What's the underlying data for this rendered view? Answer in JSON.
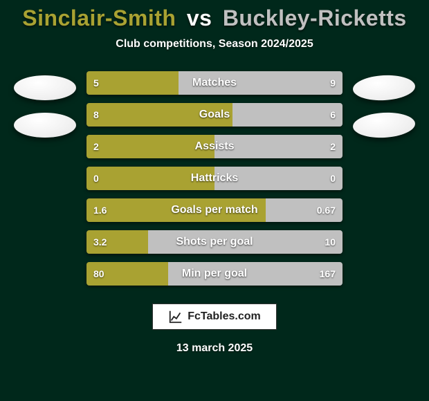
{
  "background_color": "#00281b",
  "title": {
    "player1": "Sinclair-Smith",
    "vs": "vs",
    "player2": "Buckley-Ricketts",
    "player1_color": "#a9a232",
    "vs_color": "#ffffff",
    "player2_color": "#c0c0c0",
    "fontsize": 32
  },
  "subtitle": "Club competitions, Season 2024/2025",
  "bar_meta": {
    "height": 34,
    "radius": 4,
    "label_fontsize": 16,
    "value_fontsize": 14,
    "left_color": "#a9a232",
    "right_color": "#c0c0c0",
    "label_color": "#ffffff"
  },
  "stats": [
    {
      "label": "Matches",
      "left_val": "5",
      "right_val": "9",
      "left_pct": 36,
      "right_pct": 64
    },
    {
      "label": "Goals",
      "left_val": "8",
      "right_val": "6",
      "left_pct": 57,
      "right_pct": 43
    },
    {
      "label": "Assists",
      "left_val": "2",
      "right_val": "2",
      "left_pct": 50,
      "right_pct": 50
    },
    {
      "label": "Hattricks",
      "left_val": "0",
      "right_val": "0",
      "left_pct": 50,
      "right_pct": 50
    },
    {
      "label": "Goals per match",
      "left_val": "1.6",
      "right_val": "0.67",
      "left_pct": 70,
      "right_pct": 30
    },
    {
      "label": "Shots per goal",
      "left_val": "3.2",
      "right_val": "10",
      "left_pct": 24,
      "right_pct": 76
    },
    {
      "label": "Min per goal",
      "left_val": "80",
      "right_val": "167",
      "left_pct": 32,
      "right_pct": 68
    }
  ],
  "footer": {
    "logo_text": "FcTables.com",
    "date": "13 march 2025"
  }
}
